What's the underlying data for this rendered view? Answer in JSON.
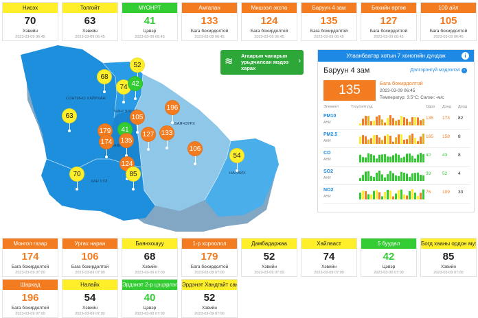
{
  "colors": {
    "yellow": "#ffef2a",
    "orange": "#f47c20",
    "green": "#33cc33",
    "map_dark": "#1e8fdc",
    "map_mid": "#4aaeea",
    "map_light": "#8fc7e8",
    "accent_blue": "#1e88e5"
  },
  "top_cards": [
    {
      "name": "Нисэх",
      "value": "70",
      "status": "Хэвийн",
      "time": "2023-03-09 06:45",
      "color": "yellow"
    },
    {
      "name": "Толгойт",
      "value": "63",
      "status": "Хэвийн",
      "time": "2023-03-09 06:45",
      "color": "yellow"
    },
    {
      "name": "МҮОНРТ",
      "value": "41",
      "status": "Цэвэр",
      "time": "2023-03-09 06:45",
      "color": "green"
    },
    {
      "name": "Амгалан",
      "value": "133",
      "status": "Бага бохирдолтой",
      "time": "2023-03-09 06:45",
      "color": "orange"
    },
    {
      "name": "Мишээл экспо",
      "value": "124",
      "status": "Бага бохирдолтой",
      "time": "2023-03-09 06:45",
      "color": "orange"
    },
    {
      "name": "Баруун 4 зам",
      "value": "135",
      "status": "Бага бохирдолтой",
      "time": "2023-03-09 06:45",
      "color": "orange"
    },
    {
      "name": "Бөхийн өргөө",
      "value": "127",
      "status": "Бага бохирдолтой",
      "time": "2023-03-09 06:45",
      "color": "orange"
    },
    {
      "name": "100 айл",
      "value": "105",
      "status": "Бага бохирдолтой",
      "time": "2023-03-09 06:45",
      "color": "orange"
    }
  ],
  "bottom_cards_row1": [
    {
      "name": "Монгол газар",
      "value": "174",
      "status": "Бага бохирдолтой",
      "time": "2023-03-09 07:00",
      "color": "orange"
    },
    {
      "name": "Ургах наран",
      "value": "106",
      "status": "Бага бохирдолтой",
      "time": "2023-03-09 07:00",
      "color": "orange"
    },
    {
      "name": "Баянхошуу",
      "value": "68",
      "status": "Хэвийн",
      "time": "2023-03-09 07:00",
      "color": "yellow"
    },
    {
      "name": "1-р хороолол",
      "value": "179",
      "status": "Бага бохирдолтой",
      "time": "2023-03-09 07:00",
      "color": "orange"
    },
    {
      "name": "Дамбадаржаа",
      "value": "52",
      "status": "Хэвийн",
      "time": "2023-03-09 07:00",
      "color": "yellow"
    },
    {
      "name": "Хайлааст",
      "value": "74",
      "status": "Хэвийн",
      "time": "2023-03-09 07:00",
      "color": "yellow"
    },
    {
      "name": "5 буудал",
      "value": "42",
      "status": "Цэвэр",
      "time": "2023-03-09 07:00",
      "color": "green"
    },
    {
      "name": "Богд хааны ордон музей",
      "value": "85",
      "status": "Хэвийн",
      "time": "2023-03-09 07:00",
      "color": "yellow"
    }
  ],
  "bottom_cards_row2": [
    {
      "name": "Шархад",
      "value": "196",
      "status": "Бага бохирдолтой",
      "time": "2023-03-09 07:00",
      "color": "orange"
    },
    {
      "name": "Налайх",
      "value": "54",
      "status": "Хэвийн",
      "time": "2023-03-09 07:00",
      "color": "yellow"
    },
    {
      "name": "Эрдэнэт 2-р цэцэрлэг",
      "value": "40",
      "status": "Цэвэр",
      "time": "2023-03-09 07:00",
      "color": "green"
    },
    {
      "name": "Эрдэнэт Хандгайт сан",
      "value": "52",
      "status": "Хэвийн",
      "time": "2023-03-09 07:00",
      "color": "yellow"
    }
  ],
  "promo": {
    "text": "Агаарын чанарын урьдчилсан мэдээ харах",
    "icon": "wind-icon"
  },
  "panel": {
    "title": "Улаанбаатар хотын 7 хоногийн дундаж",
    "station": "Баруун 4 зам",
    "more_link": "Дэлгэрэнгүй мэдээлэл",
    "aqi": "135",
    "status": "Бага бохирдолтой",
    "time": "2023-03-09 06:45",
    "temperature": "Температур: 3.5°C; Салхи: -м/с",
    "col_element": "Элемент",
    "col_hourly": "Үзүүлэлтүүд",
    "col_now": "Одоо",
    "col_mid": "Дэнд",
    "col_min": "Доод",
    "unit": "АНИ",
    "pollutants": [
      {
        "name": "PM10",
        "now": "135",
        "mid": "173",
        "min": "82",
        "palette": "orange"
      },
      {
        "name": "PM2.5",
        "now": "165",
        "mid": "158",
        "min": "8",
        "palette": "orange"
      },
      {
        "name": "CO",
        "now": "42",
        "mid": "43",
        "min": "8",
        "palette": "green"
      },
      {
        "name": "SO2",
        "now": "33",
        "mid": "52",
        "min": "4",
        "palette": "green"
      },
      {
        "name": "NO2",
        "now": "76",
        "mid": "109",
        "min": "33",
        "palette": "mixed"
      }
    ]
  },
  "map": {
    "districts": [
      "СОНГИНО ХАЙРХАН",
      "ЧИНГЭЛТЭЙ",
      "БАЯНЗҮРХ",
      "НАЛАЙХ",
      "ХАН УУЛ",
      "БАЯНГОЛ"
    ],
    "markers": [
      {
        "value": "68",
        "color": "yellow"
      },
      {
        "value": "52",
        "color": "yellow"
      },
      {
        "value": "74",
        "color": "yellow"
      },
      {
        "value": "42",
        "color": "green"
      },
      {
        "value": "63",
        "color": "yellow"
      },
      {
        "value": "105",
        "color": "orange"
      },
      {
        "value": "196",
        "color": "orange"
      },
      {
        "value": "41",
        "color": "green"
      },
      {
        "value": "179",
        "color": "orange"
      },
      {
        "value": "135",
        "color": "orange"
      },
      {
        "value": "174",
        "color": "orange"
      },
      {
        "value": "127",
        "color": "orange"
      },
      {
        "value": "133",
        "color": "orange"
      },
      {
        "value": "106",
        "color": "orange"
      },
      {
        "value": "54",
        "color": "yellow"
      },
      {
        "value": "124",
        "color": "orange"
      },
      {
        "value": "85",
        "color": "yellow"
      },
      {
        "value": "70",
        "color": "yellow"
      }
    ]
  }
}
